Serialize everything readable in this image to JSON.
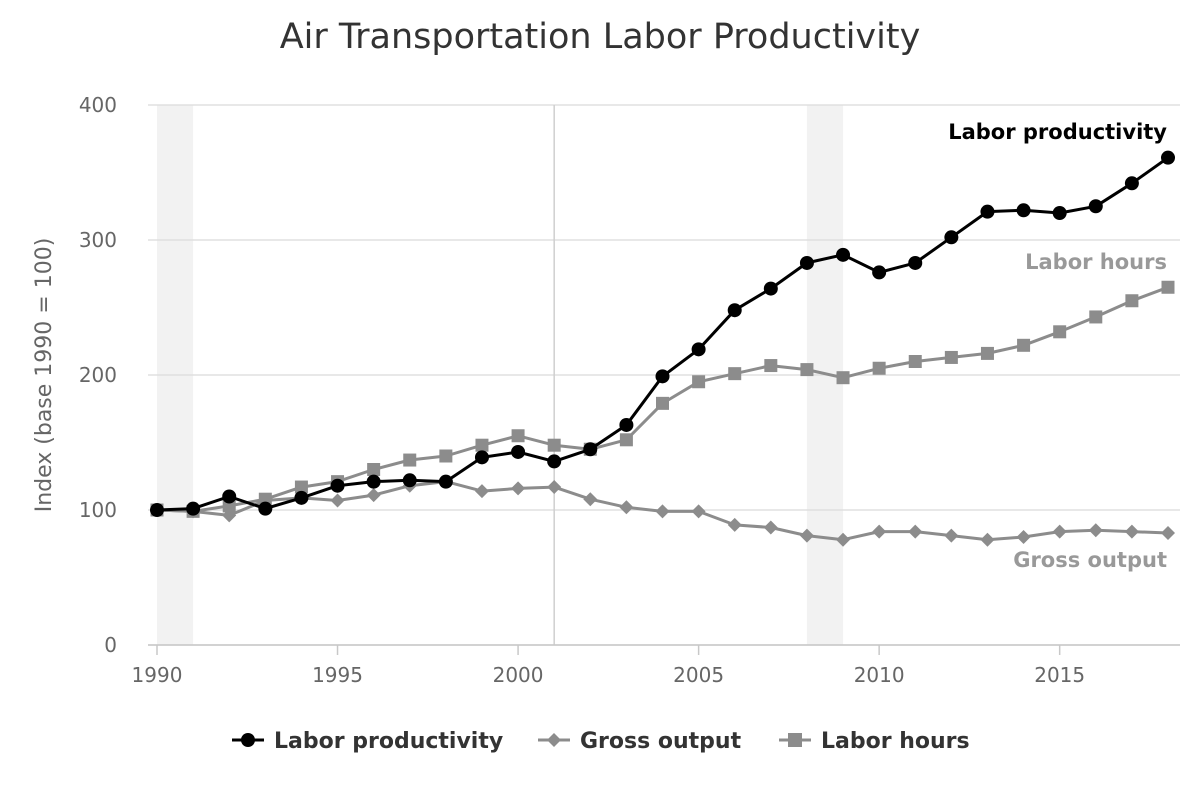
{
  "chart_data": {
    "type": "line",
    "title": "Air Transportation Labor Productivity",
    "ylabel": "Index (base 1990 = 100)",
    "xlabel": "",
    "xlim": [
      1990,
      2018
    ],
    "ylim": [
      0,
      400
    ],
    "x_ticks": [
      1990,
      1995,
      2000,
      2005,
      2010,
      2015
    ],
    "y_ticks": [
      0,
      100,
      200,
      300,
      400
    ],
    "grid": "horizontal",
    "recession_bands": [
      [
        1990,
        1991
      ],
      [
        2008,
        2009
      ]
    ],
    "reference_line_x": 2001,
    "legend_position": "bottom-center",
    "x": [
      1990,
      1991,
      1992,
      1993,
      1994,
      1995,
      1996,
      1997,
      1998,
      1999,
      2000,
      2001,
      2002,
      2003,
      2004,
      2005,
      2006,
      2007,
      2008,
      2009,
      2010,
      2011,
      2012,
      2013,
      2014,
      2015,
      2016,
      2017,
      2018
    ],
    "series": [
      {
        "name": "Labor productivity",
        "color": "#000000",
        "marker": "circle",
        "end_label": "Labor productivity",
        "values": [
          100,
          101,
          110,
          101,
          109,
          118,
          121,
          122,
          121,
          139,
          143,
          136,
          145,
          163,
          199,
          219,
          248,
          264,
          283,
          289,
          276,
          283,
          302,
          321,
          322,
          320,
          325,
          342,
          361
        ]
      },
      {
        "name": "Gross output",
        "color": "#8c8c8c",
        "marker": "diamond",
        "end_label": "Gross output",
        "values": [
          100,
          99,
          96,
          107,
          109,
          107,
          111,
          118,
          121,
          114,
          116,
          117,
          108,
          102,
          99,
          99,
          89,
          87,
          81,
          78,
          84,
          84,
          81,
          78,
          80,
          84,
          85,
          84,
          83
        ]
      },
      {
        "name": "Labor hours",
        "color": "#8c8c8c",
        "marker": "square",
        "end_label": "Labor hours",
        "values": [
          100,
          99,
          103,
          108,
          117,
          121,
          130,
          137,
          140,
          148,
          155,
          148,
          145,
          152,
          179,
          195,
          201,
          207,
          204,
          198,
          205,
          210,
          213,
          216,
          222,
          232,
          243,
          255,
          265
        ]
      }
    ]
  }
}
